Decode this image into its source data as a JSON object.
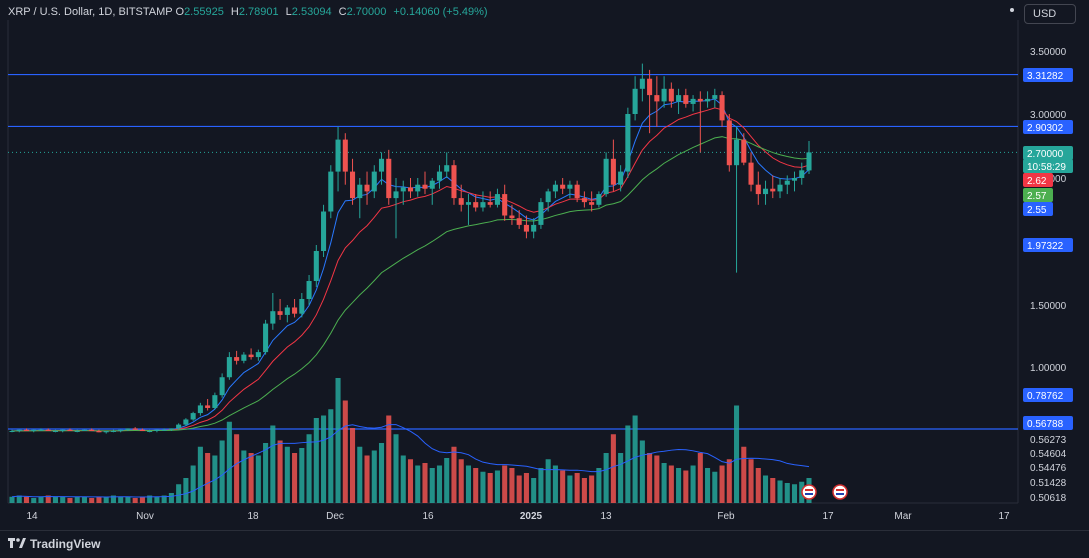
{
  "header": {
    "symbol": "XRP / U.S. Dollar, 1D, BITSTAMP",
    "o_label": "O",
    "o_value": "2.55925",
    "h_label": "H",
    "h_value": "2.78901",
    "l_label": "L",
    "l_value": "2.53094",
    "c_label": "C",
    "c_value": "2.70000",
    "change": "+0.14060 (+5.49%)"
  },
  "currency_button": "USD",
  "footer": {
    "brand": "TradingView"
  },
  "colors": {
    "up": "#26a69a",
    "down": "#ef5350",
    "blue_line": "#2962ff",
    "ema_fast": "#2979ff",
    "ema_mid": "#f23645",
    "ema_slow": "#4caf50",
    "background": "#131722"
  },
  "icons": [
    "flag-icon",
    "flag-icon",
    "tradingview-logo-icon"
  ],
  "chart_data": {
    "type": "candlestick",
    "price_axis_ticks": [
      "3.50000",
      "3.00000",
      "2.50000",
      "1.50000",
      "1.00000"
    ],
    "volume_axis_ticks": [
      "0.56273",
      "0.54604",
      "0.54476",
      "0.51428",
      "0.50618"
    ],
    "time_axis_ticks": [
      "14",
      "Nov",
      "18",
      "Dec",
      "16",
      "2025",
      "13",
      "Feb",
      "17",
      "Mar",
      "17"
    ],
    "horizontal_lines": [
      3.31282,
      2.90302,
      0.56788
    ],
    "price_labels": [
      {
        "text": "3.31282",
        "kind": "line"
      },
      {
        "text": "2.90302",
        "kind": "line"
      },
      {
        "text": "2.70000",
        "kind": "last"
      },
      {
        "text": "10:58:29",
        "kind": "countdown"
      },
      {
        "text": "2.62",
        "kind": "ema-red"
      },
      {
        "text": "2.57",
        "kind": "ema-green"
      },
      {
        "text": "2.55",
        "kind": "ema-blue"
      },
      {
        "text": "1.97322",
        "kind": "line"
      },
      {
        "text": "0.78762",
        "kind": "line"
      },
      {
        "text": "0.56788",
        "kind": "line"
      }
    ],
    "last": {
      "open": 2.55925,
      "high": 2.78901,
      "low": 2.53094,
      "close": 2.7
    },
    "candles": [
      [
        0.5,
        0.51,
        0.49,
        0.5
      ],
      [
        0.5,
        0.51,
        0.49,
        0.51
      ],
      [
        0.51,
        0.52,
        0.5,
        0.5
      ],
      [
        0.5,
        0.51,
        0.49,
        0.51
      ],
      [
        0.51,
        0.52,
        0.5,
        0.51
      ],
      [
        0.51,
        0.52,
        0.5,
        0.5
      ],
      [
        0.5,
        0.51,
        0.49,
        0.5
      ],
      [
        0.5,
        0.51,
        0.49,
        0.51
      ],
      [
        0.51,
        0.52,
        0.5,
        0.5
      ],
      [
        0.5,
        0.51,
        0.49,
        0.5
      ],
      [
        0.5,
        0.51,
        0.5,
        0.51
      ],
      [
        0.51,
        0.52,
        0.5,
        0.5
      ],
      [
        0.5,
        0.51,
        0.49,
        0.49
      ],
      [
        0.49,
        0.5,
        0.48,
        0.5
      ],
      [
        0.5,
        0.51,
        0.49,
        0.5
      ],
      [
        0.5,
        0.51,
        0.49,
        0.51
      ],
      [
        0.51,
        0.52,
        0.5,
        0.52
      ],
      [
        0.52,
        0.53,
        0.51,
        0.51
      ],
      [
        0.51,
        0.52,
        0.5,
        0.5
      ],
      [
        0.5,
        0.51,
        0.49,
        0.5
      ],
      [
        0.5,
        0.51,
        0.49,
        0.51
      ],
      [
        0.51,
        0.52,
        0.5,
        0.51
      ],
      [
        0.51,
        0.52,
        0.5,
        0.52
      ],
      [
        0.52,
        0.56,
        0.51,
        0.55
      ],
      [
        0.55,
        0.6,
        0.54,
        0.59
      ],
      [
        0.59,
        0.65,
        0.58,
        0.64
      ],
      [
        0.64,
        0.72,
        0.62,
        0.7
      ],
      [
        0.7,
        0.75,
        0.66,
        0.68
      ],
      [
        0.68,
        0.8,
        0.67,
        0.78
      ],
      [
        0.78,
        0.95,
        0.76,
        0.92
      ],
      [
        0.92,
        1.12,
        0.9,
        1.08
      ],
      [
        1.08,
        1.13,
        1.02,
        1.05
      ],
      [
        1.05,
        1.12,
        1.03,
        1.1
      ],
      [
        1.1,
        1.15,
        1.06,
        1.08
      ],
      [
        1.08,
        1.14,
        1.05,
        1.12
      ],
      [
        1.12,
        1.38,
        1.1,
        1.35
      ],
      [
        1.35,
        1.6,
        1.3,
        1.45
      ],
      [
        1.45,
        1.55,
        1.38,
        1.42
      ],
      [
        1.42,
        1.5,
        1.36,
        1.48
      ],
      [
        1.48,
        1.55,
        1.4,
        1.43
      ],
      [
        1.43,
        1.6,
        1.4,
        1.55
      ],
      [
        1.55,
        1.75,
        1.5,
        1.7
      ],
      [
        1.7,
        2.0,
        1.65,
        1.95
      ],
      [
        1.95,
        2.3,
        1.9,
        2.25
      ],
      [
        2.25,
        2.6,
        2.2,
        2.55
      ],
      [
        2.55,
        2.9,
        2.4,
        2.8
      ],
      [
        2.8,
        2.85,
        2.45,
        2.55
      ],
      [
        2.55,
        2.65,
        2.3,
        2.35
      ],
      [
        2.35,
        2.5,
        2.2,
        2.45
      ],
      [
        2.45,
        2.55,
        2.3,
        2.4
      ],
      [
        2.4,
        2.6,
        2.35,
        2.55
      ],
      [
        2.55,
        2.7,
        2.45,
        2.65
      ],
      [
        2.65,
        2.72,
        2.3,
        2.35
      ],
      [
        2.35,
        2.5,
        2.05,
        2.4
      ],
      [
        2.4,
        2.48,
        2.3,
        2.43
      ],
      [
        2.43,
        2.5,
        2.35,
        2.4
      ],
      [
        2.4,
        2.5,
        2.36,
        2.45
      ],
      [
        2.45,
        2.55,
        2.38,
        2.42
      ],
      [
        2.42,
        2.5,
        2.3,
        2.48
      ],
      [
        2.48,
        2.6,
        2.42,
        2.55
      ],
      [
        2.55,
        2.7,
        2.5,
        2.6
      ],
      [
        2.6,
        2.64,
        2.3,
        2.35
      ],
      [
        2.35,
        2.45,
        2.25,
        2.3
      ],
      [
        2.3,
        2.38,
        2.15,
        2.32
      ],
      [
        2.32,
        2.38,
        2.25,
        2.28
      ],
      [
        2.28,
        2.4,
        2.25,
        2.32
      ],
      [
        2.32,
        2.4,
        2.28,
        2.3
      ],
      [
        2.3,
        2.42,
        2.28,
        2.38
      ],
      [
        2.38,
        2.45,
        2.18,
        2.22
      ],
      [
        2.22,
        2.3,
        2.15,
        2.2
      ],
      [
        2.2,
        2.26,
        2.12,
        2.15
      ],
      [
        2.15,
        2.22,
        2.05,
        2.1
      ],
      [
        2.1,
        2.2,
        2.05,
        2.15
      ],
      [
        2.15,
        2.35,
        2.12,
        2.32
      ],
      [
        2.32,
        2.42,
        2.25,
        2.4
      ],
      [
        2.4,
        2.48,
        2.35,
        2.45
      ],
      [
        2.45,
        2.5,
        2.38,
        2.42
      ],
      [
        2.42,
        2.48,
        2.35,
        2.45
      ],
      [
        2.45,
        2.48,
        2.32,
        2.35
      ],
      [
        2.35,
        2.4,
        2.28,
        2.32
      ],
      [
        2.32,
        2.4,
        2.25,
        2.3
      ],
      [
        2.3,
        2.4,
        2.28,
        2.38
      ],
      [
        2.38,
        2.7,
        2.36,
        2.65
      ],
      [
        2.65,
        2.8,
        2.4,
        2.45
      ],
      [
        2.45,
        2.6,
        2.4,
        2.55
      ],
      [
        2.55,
        3.05,
        2.5,
        3.0
      ],
      [
        3.0,
        3.3,
        2.95,
        3.2
      ],
      [
        3.2,
        3.4,
        3.1,
        3.28
      ],
      [
        3.28,
        3.35,
        2.85,
        3.15
      ],
      [
        3.15,
        3.3,
        2.9,
        3.1
      ],
      [
        3.1,
        3.3,
        3.05,
        3.2
      ],
      [
        3.2,
        3.25,
        3.05,
        3.1
      ],
      [
        3.1,
        3.2,
        3.0,
        3.15
      ],
      [
        3.15,
        3.2,
        3.05,
        3.08
      ],
      [
        3.08,
        3.15,
        3.02,
        3.12
      ],
      [
        3.12,
        3.18,
        2.7,
        3.1
      ],
      [
        3.1,
        3.18,
        3.05,
        3.12
      ],
      [
        3.12,
        3.2,
        3.05,
        3.15
      ],
      [
        3.15,
        3.18,
        2.9,
        2.95
      ],
      [
        2.95,
        3.0,
        2.55,
        2.6
      ],
      [
        2.6,
        2.9,
        1.77,
        2.8
      ],
      [
        2.8,
        2.85,
        2.6,
        2.62
      ],
      [
        2.62,
        2.7,
        2.4,
        2.45
      ],
      [
        2.45,
        2.55,
        2.3,
        2.38
      ],
      [
        2.38,
        2.48,
        2.3,
        2.42
      ],
      [
        2.42,
        2.52,
        2.35,
        2.4
      ],
      [
        2.4,
        2.5,
        2.35,
        2.45
      ],
      [
        2.45,
        2.52,
        2.38,
        2.48
      ],
      [
        2.48,
        2.55,
        2.4,
        2.5
      ],
      [
        2.5,
        2.62,
        2.45,
        2.56
      ],
      [
        2.55925,
        2.78901,
        2.53094,
        2.7
      ]
    ],
    "volume": [
      0.05,
      0.06,
      0.05,
      0.04,
      0.05,
      0.06,
      0.05,
      0.05,
      0.04,
      0.05,
      0.05,
      0.04,
      0.05,
      0.05,
      0.06,
      0.05,
      0.05,
      0.04,
      0.05,
      0.06,
      0.05,
      0.06,
      0.08,
      0.15,
      0.2,
      0.3,
      0.45,
      0.4,
      0.38,
      0.5,
      0.65,
      0.55,
      0.42,
      0.4,
      0.38,
      0.48,
      0.62,
      0.5,
      0.45,
      0.4,
      0.44,
      0.55,
      0.68,
      0.7,
      0.75,
      1.0,
      0.82,
      0.6,
      0.45,
      0.38,
      0.42,
      0.48,
      0.7,
      0.55,
      0.38,
      0.35,
      0.3,
      0.32,
      0.28,
      0.3,
      0.36,
      0.45,
      0.35,
      0.3,
      0.28,
      0.25,
      0.24,
      0.26,
      0.3,
      0.28,
      0.22,
      0.24,
      0.2,
      0.28,
      0.35,
      0.3,
      0.26,
      0.22,
      0.24,
      0.2,
      0.22,
      0.28,
      0.4,
      0.55,
      0.4,
      0.62,
      0.7,
      0.5,
      0.4,
      0.38,
      0.32,
      0.3,
      0.28,
      0.26,
      0.3,
      0.4,
      0.28,
      0.25,
      0.3,
      0.35,
      0.78,
      0.45,
      0.35,
      0.28,
      0.22,
      0.2,
      0.18,
      0.16,
      0.15,
      0.17,
      0.2
    ],
    "ema_fast": [
      2.55
    ],
    "ema_mid": [
      2.62
    ],
    "ema_slow": [
      2.57
    ]
  }
}
